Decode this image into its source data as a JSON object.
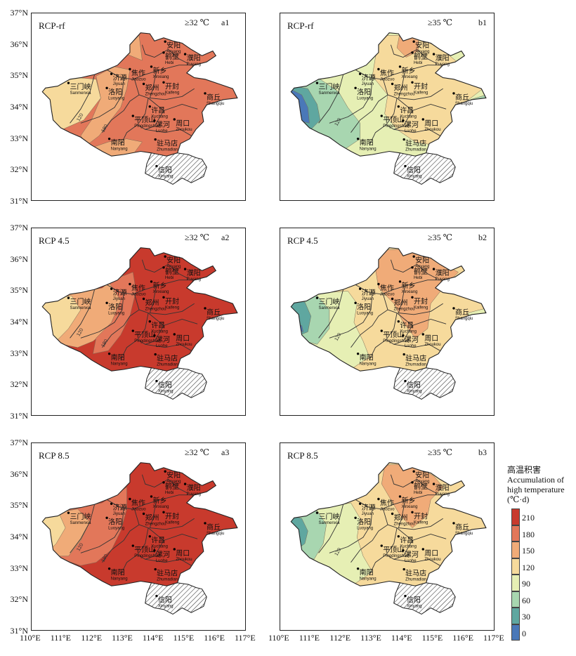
{
  "figure": {
    "y_axis_labels": [
      "37°N",
      "36°N",
      "35°N",
      "34°N",
      "33°N",
      "32°N",
      "31°N"
    ],
    "x_axis_labels_left": [
      "110°E",
      "111°E",
      "112°E",
      "113°E",
      "114°E",
      "115°E",
      "116°E",
      "117°E"
    ],
    "x_axis_labels_right": [
      "110°E",
      "111°E",
      "112°E",
      "113°E",
      "114°E",
      "115°E",
      "116°E",
      "117°E"
    ]
  },
  "panels": [
    {
      "id": "a1",
      "scenario": "RCP-rf",
      "threshold": "≥32 ℃",
      "label": "a1",
      "palette": "warm1"
    },
    {
      "id": "b1",
      "scenario": "RCP-rf",
      "threshold": "≥35 ℃",
      "label": "b1",
      "palette": "cool1"
    },
    {
      "id": "a2",
      "scenario": "RCP 4.5",
      "threshold": "≥32 ℃",
      "label": "a2",
      "palette": "warm2"
    },
    {
      "id": "b2",
      "scenario": "RCP 4.5",
      "threshold": "≥35 ℃",
      "label": "b2",
      "palette": "cool2"
    },
    {
      "id": "a3",
      "scenario": "RCP 8.5",
      "threshold": "≥32 ℃",
      "label": "a3",
      "palette": "warm3"
    },
    {
      "id": "b3",
      "scenario": "RCP 8.5",
      "threshold": "≥35 ℃",
      "label": "b3",
      "palette": "cool3"
    }
  ],
  "cities": [
    {
      "cn": "安阳",
      "en": "Anyang",
      "lon": 114.35,
      "lat": 36.1
    },
    {
      "cn": "鹤壁",
      "en": "Hebi",
      "lon": 114.3,
      "lat": 35.75
    },
    {
      "cn": "濮阳",
      "en": "Puyang",
      "lon": 115.0,
      "lat": 35.7
    },
    {
      "cn": "济源",
      "en": "Jiyuan",
      "lon": 112.6,
      "lat": 35.07
    },
    {
      "cn": "焦作",
      "en": "Jiaozuo",
      "lon": 113.2,
      "lat": 35.22
    },
    {
      "cn": "新乡",
      "en": "Xinxiang",
      "lon": 113.9,
      "lat": 35.3
    },
    {
      "cn": "三门峡",
      "en": "Sanmenxia",
      "lon": 111.2,
      "lat": 34.78
    },
    {
      "cn": "洛阳",
      "en": "Luoyang",
      "lon": 112.45,
      "lat": 34.62
    },
    {
      "cn": "郑州",
      "en": "Zhengzhou",
      "lon": 113.65,
      "lat": 34.75
    },
    {
      "cn": "开封",
      "en": "Kaifeng",
      "lon": 114.3,
      "lat": 34.8
    },
    {
      "cn": "商丘",
      "en": "Shangqiu",
      "lon": 115.65,
      "lat": 34.45
    },
    {
      "cn": "许昌",
      "en": "Xuchang",
      "lon": 113.85,
      "lat": 34.03
    },
    {
      "cn": "平顶山",
      "en": "Pingdingshan",
      "lon": 113.3,
      "lat": 33.73
    },
    {
      "cn": "漯河",
      "en": "Luohe",
      "lon": 114.0,
      "lat": 33.58
    },
    {
      "cn": "周口",
      "en": "Zhoukou",
      "lon": 114.65,
      "lat": 33.62
    },
    {
      "cn": "南阳",
      "en": "Nanyang",
      "lon": 112.53,
      "lat": 33.0
    },
    {
      "cn": "驻马店",
      "en": "Zhumadian",
      "lon": 114.03,
      "lat": 32.98
    },
    {
      "cn": "信阳",
      "en": "Xinyang",
      "lon": 114.07,
      "lat": 32.13
    }
  ],
  "legend": {
    "title_cn": "高温积害",
    "title_en_1": "Accumulation of",
    "title_en_2": "high temperature",
    "unit": "(℃·d)",
    "ticks": [
      "210",
      "180",
      "150",
      "120",
      "90",
      "60",
      "30",
      "0"
    ],
    "colors": [
      "#c83a2d",
      "#e2775a",
      "#f0ab78",
      "#f6da9c",
      "#e6efb4",
      "#a8d6b0",
      "#5fa7a0",
      "#4a78b8"
    ]
  },
  "contour_labels": {
    "warm": [
      "180",
      "120"
    ],
    "cool": [
      "120"
    ]
  }
}
